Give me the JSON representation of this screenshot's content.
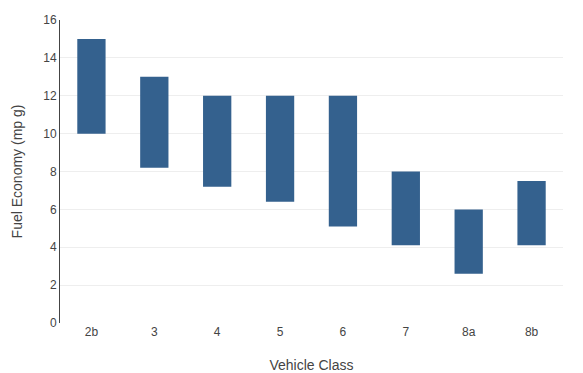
{
  "chart_data": {
    "type": "bar",
    "categories": [
      "2b",
      "3",
      "4",
      "5",
      "6",
      "7",
      "8a",
      "8b"
    ],
    "bottoms": [
      10.0,
      8.2,
      7.2,
      6.4,
      5.1,
      4.1,
      2.6,
      4.1
    ],
    "values": [
      15.0,
      13.0,
      12.0,
      12.0,
      12.0,
      8.0,
      6.0,
      7.5
    ],
    "color": "#34618E",
    "xlabel": "Vehicle Class",
    "ylabel": "Fuel Economy (mp g)",
    "ylim": [
      0,
      16
    ],
    "yticks": [
      0,
      2,
      4,
      6,
      8,
      10,
      12,
      14,
      16
    ],
    "grid": true
  }
}
